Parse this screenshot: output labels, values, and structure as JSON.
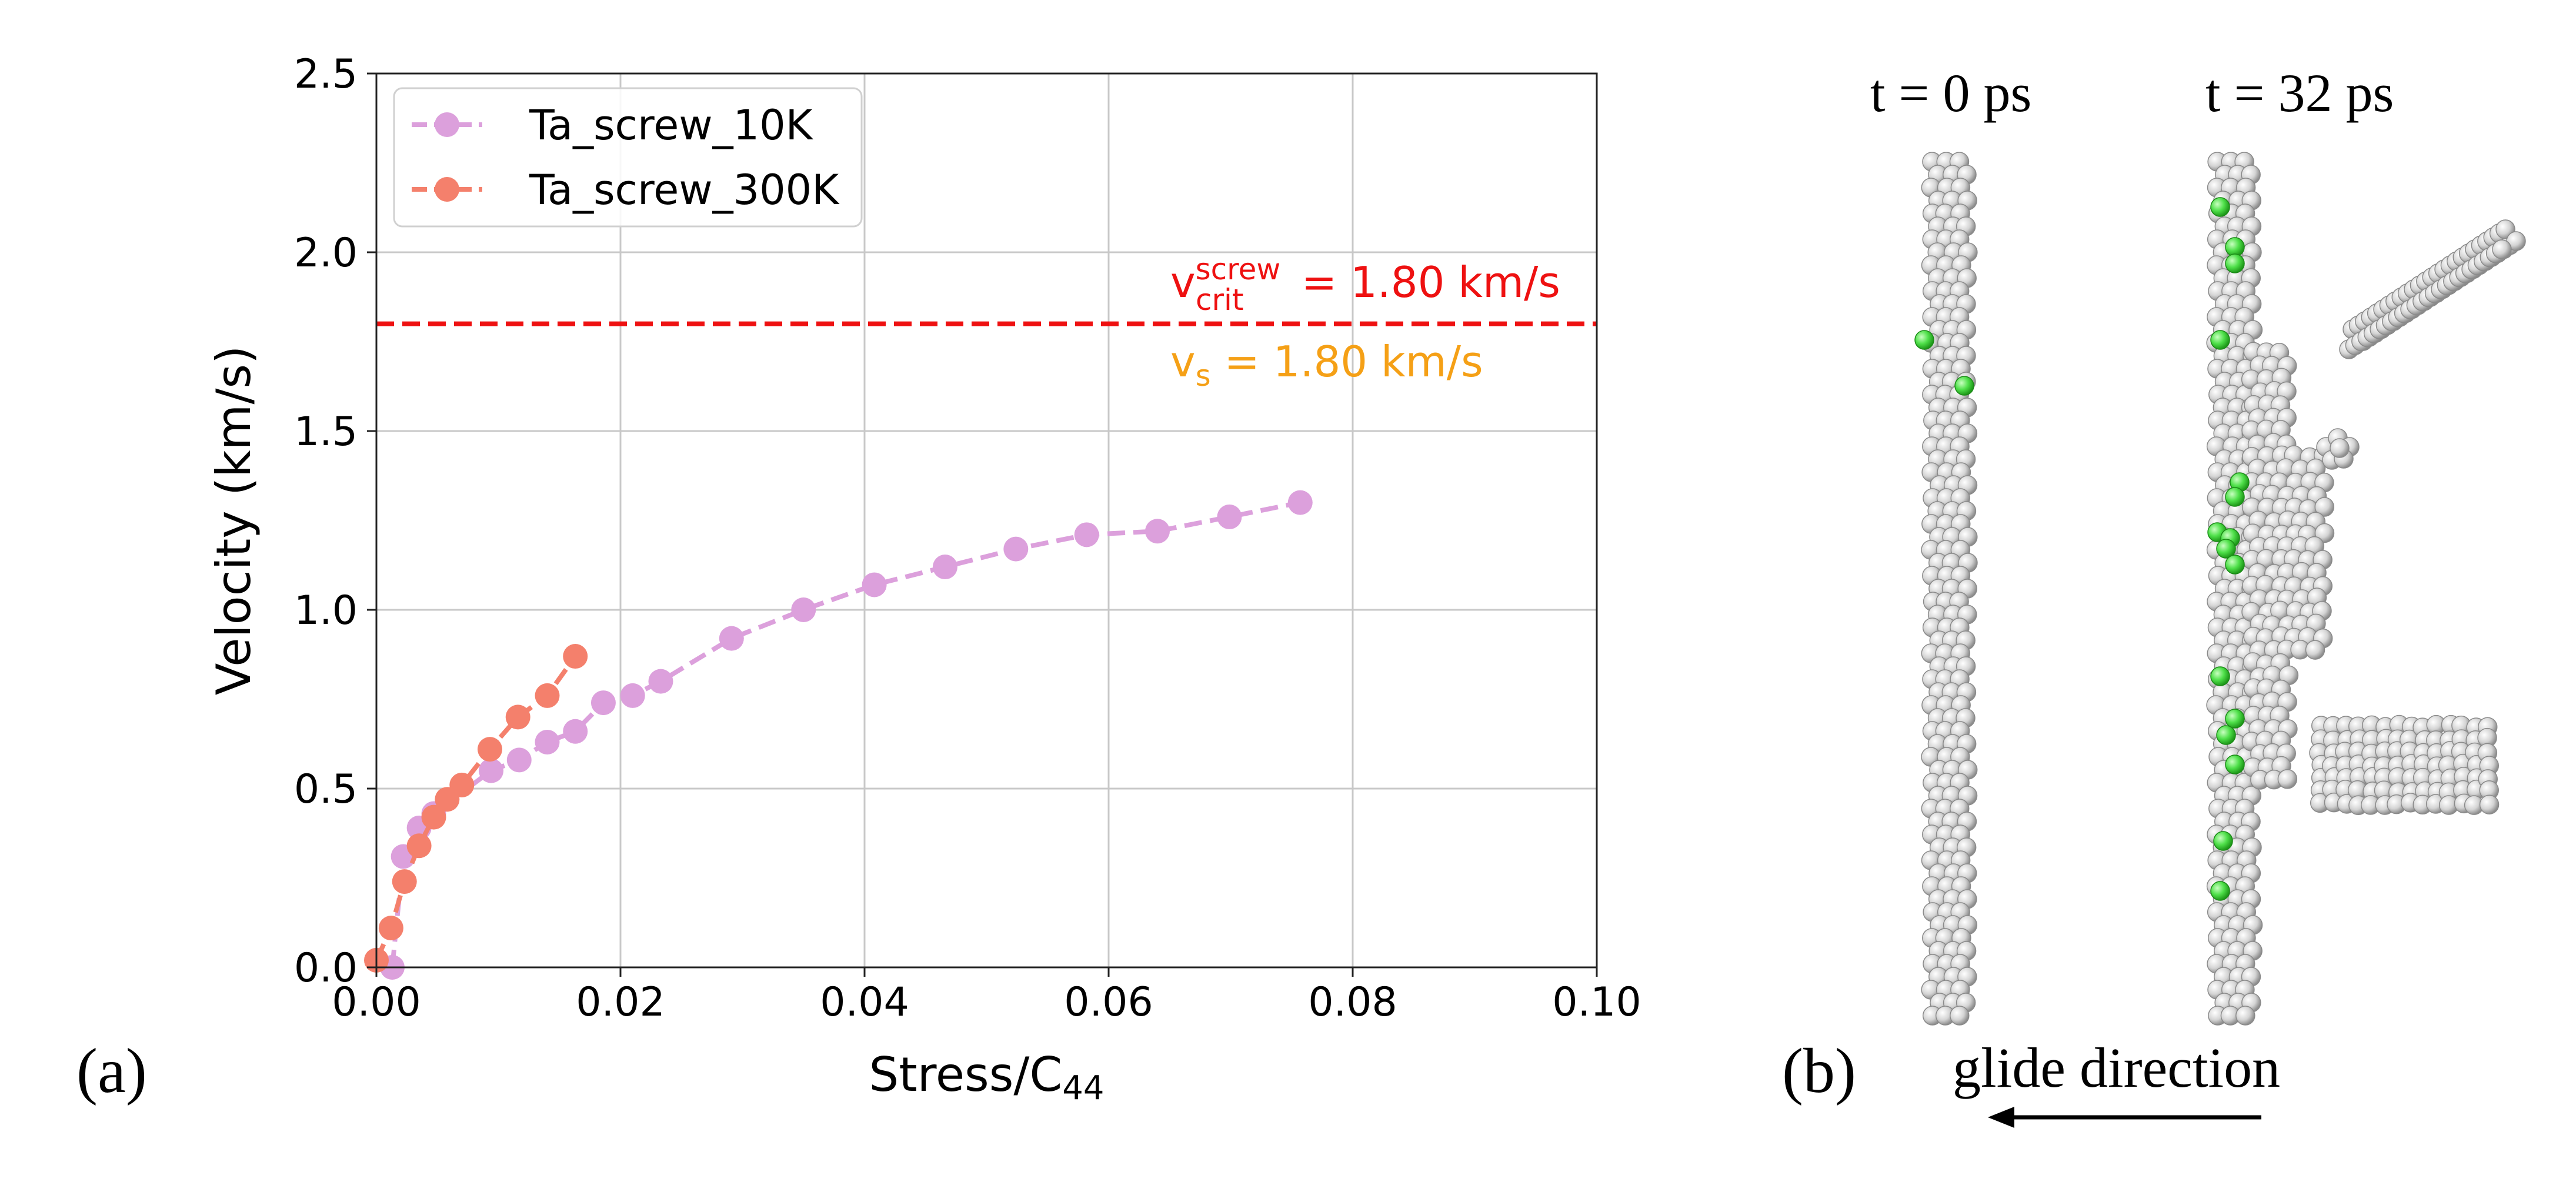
{
  "panel_a_label": "(a)",
  "panel_b_label": "(b)",
  "chart_data": {
    "type": "line",
    "xlabel": "Stress/C44",
    "ylabel": "Velocity (km/s)",
    "xlim": [
      0.0,
      0.1
    ],
    "ylim": [
      0.0,
      2.5
    ],
    "xticks": [
      "0.00",
      "0.02",
      "0.04",
      "0.06",
      "0.08",
      "0.10"
    ],
    "yticks": [
      "0.0",
      "0.5",
      "1.0",
      "1.5",
      "2.0",
      "2.5"
    ],
    "grid": true,
    "legend_position": "top-left",
    "series": [
      {
        "name": "Ta_screw_10K",
        "color": "#dca0dc",
        "x": [
          0.0013,
          0.0022,
          0.0035,
          0.0047,
          0.0094,
          0.0117,
          0.014,
          0.0163,
          0.0186,
          0.021,
          0.0233,
          0.0291,
          0.035,
          0.0408,
          0.0466,
          0.0524,
          0.0582,
          0.064,
          0.0699,
          0.0757
        ],
        "y": [
          0.0,
          0.31,
          0.39,
          0.43,
          0.55,
          0.58,
          0.63,
          0.66,
          0.74,
          0.76,
          0.8,
          0.92,
          1.0,
          1.07,
          1.12,
          1.17,
          1.21,
          1.22,
          1.26,
          1.3
        ]
      },
      {
        "name": "Ta_screw_300K",
        "color": "#f4806c",
        "x": [
          0.0,
          0.0012,
          0.0023,
          0.0035,
          0.0047,
          0.0058,
          0.007,
          0.0093,
          0.0116,
          0.014,
          0.0163
        ],
        "y": [
          0.02,
          0.11,
          0.24,
          0.34,
          0.42,
          0.47,
          0.51,
          0.61,
          0.7,
          0.76,
          0.87
        ]
      }
    ],
    "reference_line": {
      "y": 1.8,
      "color": "#ee1111",
      "label_main": "v",
      "label_sup": "screw",
      "label_sub": "crit",
      "label_rest": " = 1.80 km/s",
      "label2_main": "v",
      "label2_sub": "s",
      "label2_rest": " = 1.80 km/s",
      "label2_color": "#f5a016"
    }
  },
  "panel_b": {
    "t0_label": "t = 0 ps",
    "t32_label": "t = 32 ps",
    "glide_label": "glide direction"
  }
}
